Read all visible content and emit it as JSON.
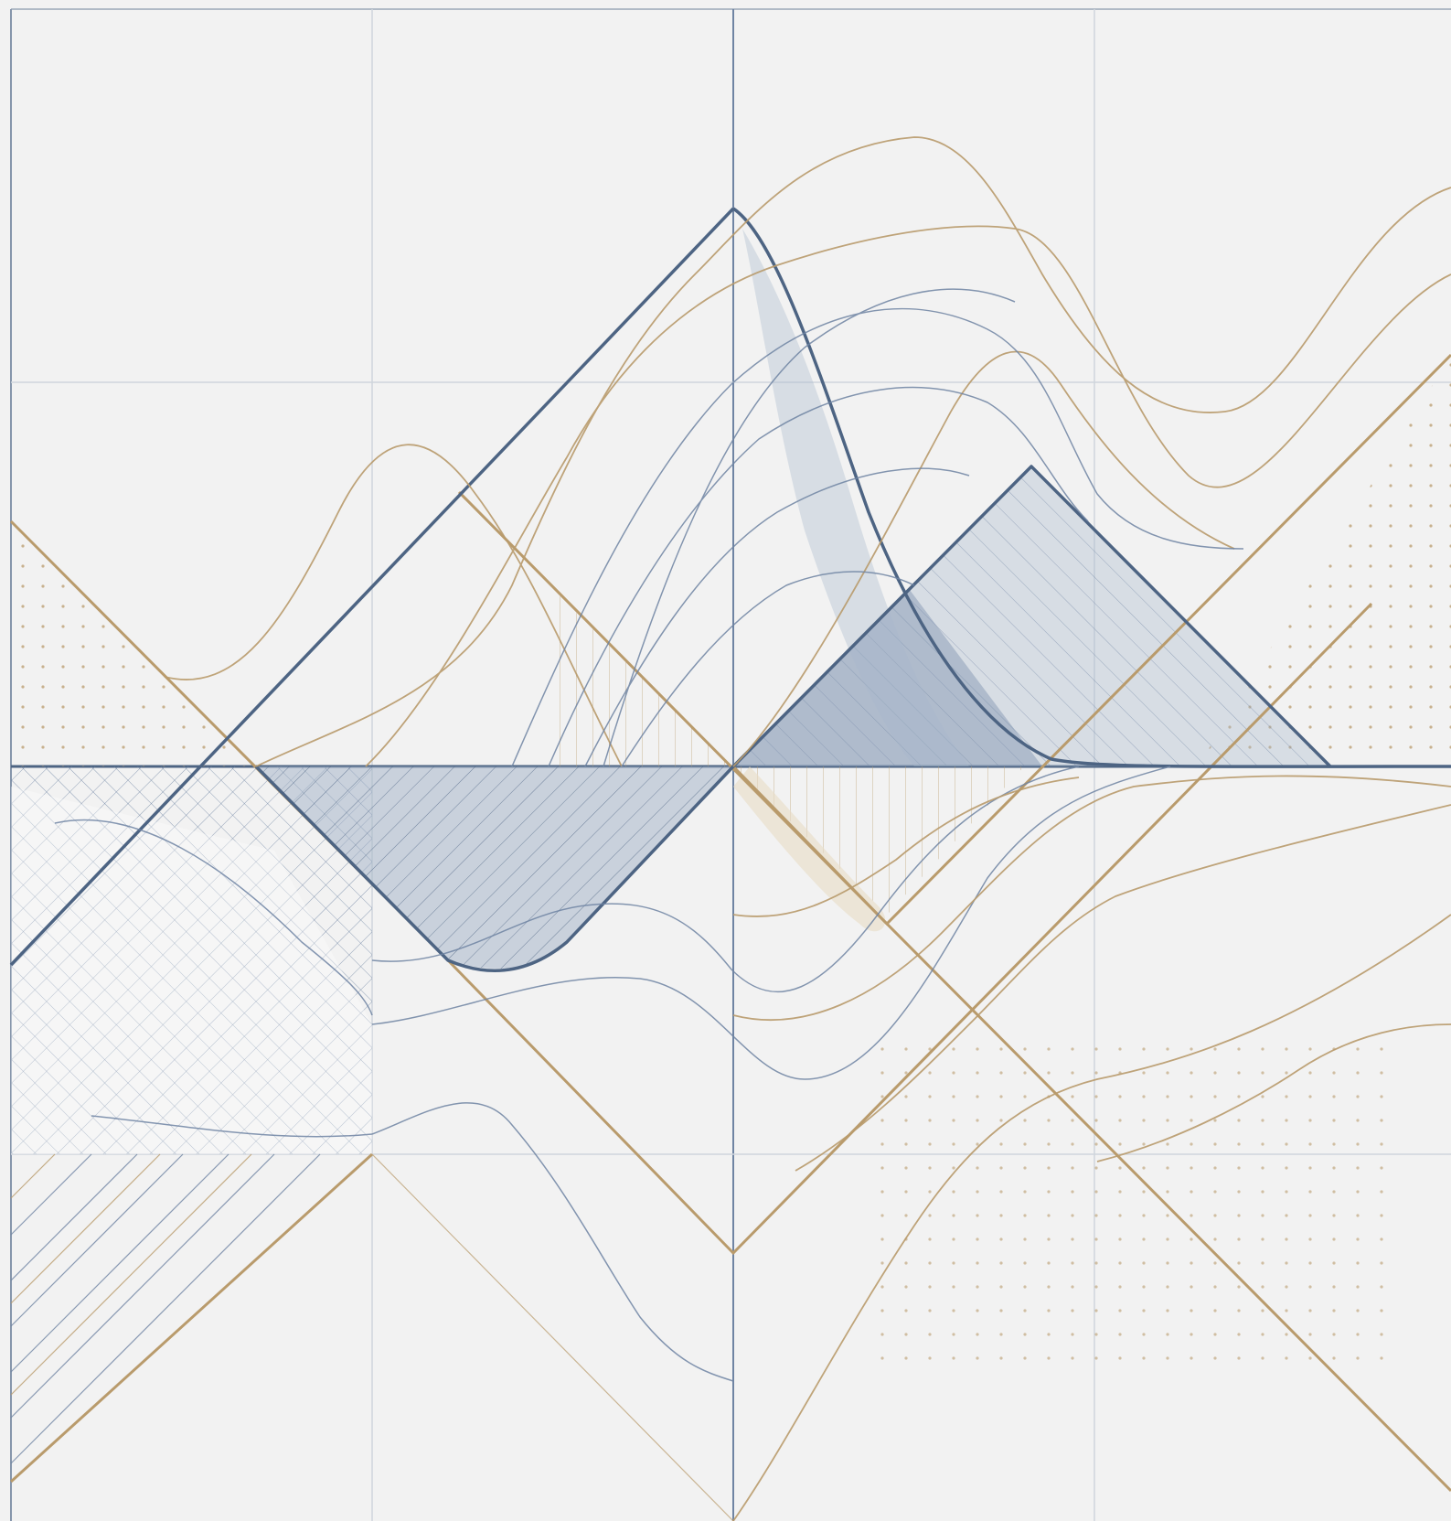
{
  "palette": {
    "background": "#f2f2f2",
    "navy": "#4d6483",
    "navy_light": "#6f84a3",
    "gold": "#b99b6c",
    "grid": "#cfd5dc",
    "fill_blue": "#a7b6cb",
    "fill_sand": "#e8dcc4"
  },
  "motif": {
    "hatch_styles": [
      "diagonal-hatch",
      "vertical-hatch",
      "cross-hatch",
      "dot-grid"
    ],
    "shapes": [
      "large-triangle",
      "small-triangle",
      "inverted-triangle",
      "diamond",
      "contour-curves"
    ]
  }
}
